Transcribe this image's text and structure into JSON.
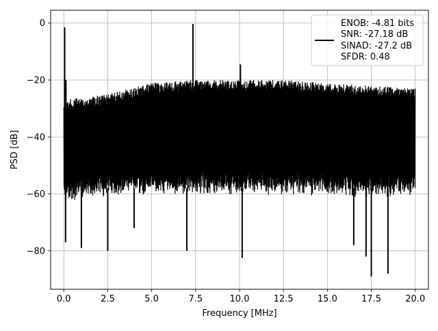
{
  "chart_data": {
    "type": "line",
    "title": "",
    "xlabel": "Frequency [MHz]",
    "ylabel": "PSD [dB]",
    "xlim": [
      -0.75,
      20.75
    ],
    "ylim": [
      -93.5,
      4.5
    ],
    "x_ticks": [
      0.0,
      2.5,
      5.0,
      7.5,
      10.0,
      12.5,
      15.0,
      17.5,
      20.0
    ],
    "x_tick_labels": [
      "0.0",
      "2.5",
      "5.0",
      "7.5",
      "10.0",
      "12.5",
      "15.0",
      "17.5",
      "20.0"
    ],
    "y_ticks": [
      0,
      -20,
      -40,
      -60,
      -80
    ],
    "y_tick_labels": [
      "0",
      "−20",
      "−40",
      "−60",
      "−80"
    ],
    "grid": true,
    "legend_position": "top-right",
    "series": [
      {
        "color": "#000000",
        "x_range": [
          0.0,
          20.0
        ],
        "noise_band_top": [
          [
            0.0,
            -27
          ],
          [
            2.5,
            -25
          ],
          [
            5.0,
            -21
          ],
          [
            7.5,
            -20
          ],
          [
            10.0,
            -20
          ],
          [
            12.5,
            -20
          ],
          [
            15.0,
            -21
          ],
          [
            17.5,
            -22
          ],
          [
            20.0,
            -23
          ]
        ],
        "noise_band_bottom": [
          [
            0.0,
            -60
          ],
          [
            2.5,
            -58
          ],
          [
            5.0,
            -57
          ],
          [
            7.5,
            -57
          ],
          [
            10.0,
            -57
          ],
          [
            12.5,
            -57
          ],
          [
            15.0,
            -57
          ],
          [
            17.5,
            -58
          ],
          [
            20.0,
            -58
          ]
        ],
        "peaks": [
          {
            "x": 0.05,
            "y": -1.5
          },
          {
            "x": 7.35,
            "y": -0.3
          },
          {
            "x": 10.05,
            "y": -14.5
          },
          {
            "x": 0.12,
            "y": -20
          }
        ],
        "dips": [
          {
            "x": 0.1,
            "y": -77
          },
          {
            "x": 1.0,
            "y": -79
          },
          {
            "x": 2.5,
            "y": -80
          },
          {
            "x": 4.0,
            "y": -72
          },
          {
            "x": 7.0,
            "y": -80
          },
          {
            "x": 10.15,
            "y": -82.5
          },
          {
            "x": 16.5,
            "y": -78
          },
          {
            "x": 17.5,
            "y": -89
          },
          {
            "x": 18.45,
            "y": -88
          },
          {
            "x": 17.2,
            "y": -82
          }
        ]
      }
    ],
    "legend": {
      "lines": [
        "ENOB: -4.81 bits",
        "SNR: -27.18 dB",
        "SINAD: -27.2 dB",
        "SFDR: 0.48"
      ]
    }
  }
}
